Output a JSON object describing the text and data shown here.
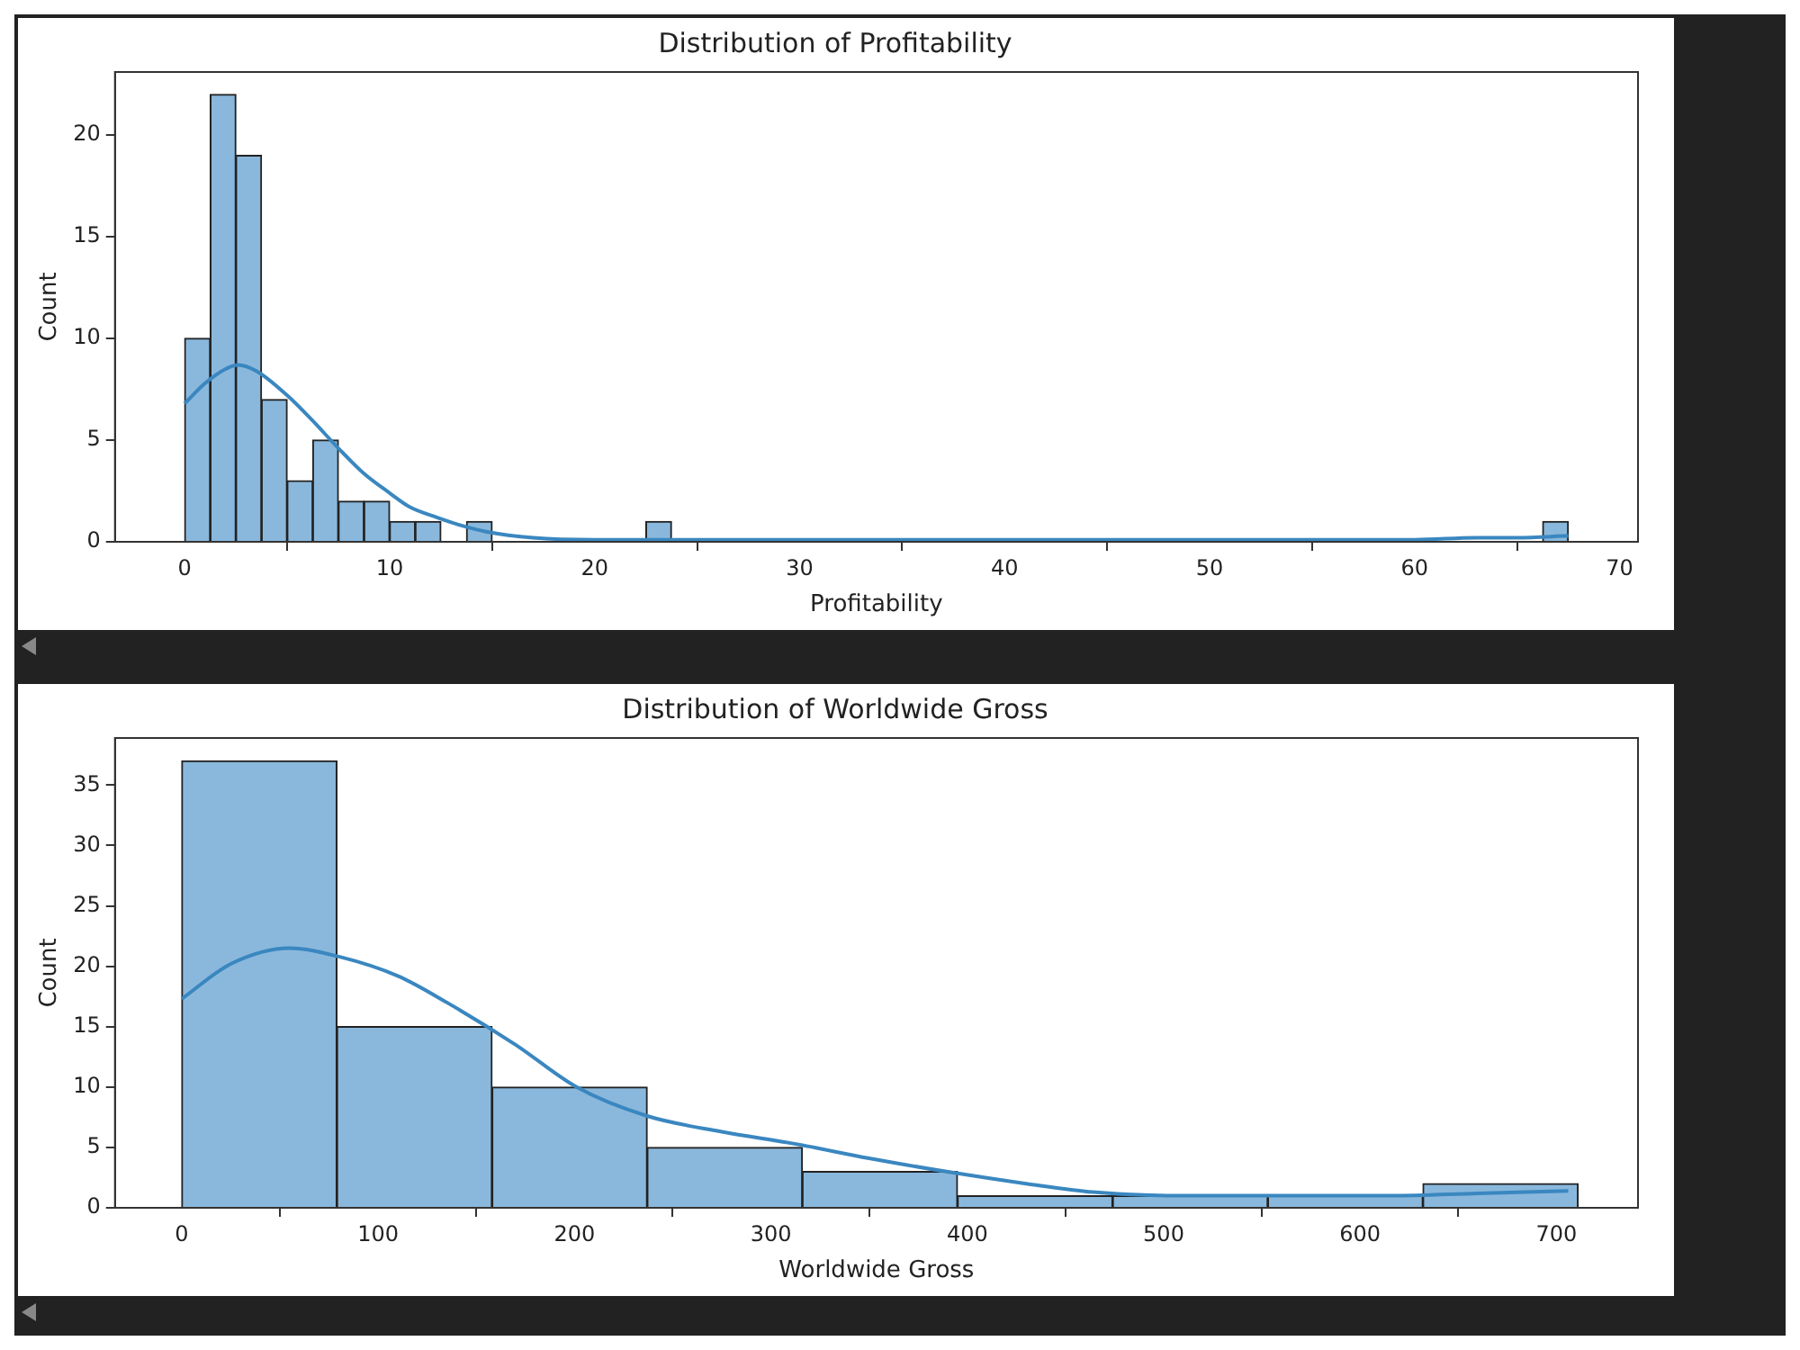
{
  "chart_data": [
    {
      "type": "histogram",
      "title": "Distribution of Profitability",
      "xlabel": "Profitability",
      "ylabel": "Count",
      "xlim": [
        -3.4,
        70.9
      ],
      "xticks": [
        0,
        10,
        20,
        30,
        40,
        50,
        60,
        70
      ],
      "ylim": [
        0,
        23.1
      ],
      "yticks": [
        0,
        5,
        10,
        15,
        20
      ],
      "legend": false,
      "grid": false,
      "series": [
        {
          "color": "#8ab8dc",
          "bins": [
            0,
            1.25,
            2.5,
            3.75,
            5,
            6.25,
            7.5,
            8.75,
            10,
            11.25,
            12.5,
            13.75,
            15,
            16.25,
            17.5,
            18.75,
            20,
            21.25,
            22.5,
            23.75,
            25,
            26.25,
            27.5,
            28.75,
            30,
            31.25,
            32.5,
            33.75,
            35,
            36.25,
            37.5,
            38.75,
            40,
            41.25,
            42.5,
            43.75,
            45,
            46.25,
            47.5,
            48.75,
            50,
            51.25,
            52.5,
            53.75,
            55,
            56.25,
            57.5,
            58.75,
            60,
            61.25,
            62.5,
            63.75,
            65,
            66.25,
            67.5
          ],
          "values": [
            10,
            22,
            19,
            7,
            3,
            5,
            2,
            2,
            1,
            1,
            0,
            1,
            0,
            0,
            0,
            0,
            0,
            0,
            1,
            0,
            0,
            0,
            0,
            0,
            0,
            0,
            0,
            0,
            0,
            0,
            0,
            0,
            0,
            0,
            0,
            0,
            0,
            0,
            0,
            0,
            0,
            0,
            0,
            0,
            0,
            0,
            0,
            0,
            0,
            0,
            0,
            0,
            0,
            1
          ]
        },
        {
          "type": "line",
          "color": "#3a87c0",
          "x": [
            0,
            1,
            2,
            2.6,
            3.5,
            5,
            6.2,
            7.5,
            8.7,
            10,
            11,
            12.3,
            13.5,
            14.7,
            17,
            20,
            25,
            30,
            40,
            50,
            55,
            60,
            63,
            65,
            67.5
          ],
          "values": [
            6.8,
            7.8,
            8.5,
            8.7,
            8.4,
            7.2,
            6,
            4.6,
            3.4,
            2.4,
            1.7,
            1.2,
            0.8,
            0.5,
            0.2,
            0.1,
            0.1,
            0.1,
            0.1,
            0.1,
            0.1,
            0.1,
            0.2,
            0.2,
            0.3
          ]
        }
      ]
    },
    {
      "type": "histogram",
      "title": "Distribution of Worldwide Gross",
      "xlabel": "Worldwide Gross",
      "ylabel": "Count",
      "xlim": [
        -34,
        741.5
      ],
      "xticks": [
        0,
        100,
        200,
        300,
        400,
        500,
        600,
        700
      ],
      "ylim": [
        0,
        38.9
      ],
      "yticks": [
        0,
        5,
        10,
        15,
        20,
        25,
        30,
        35
      ],
      "legend": false,
      "grid": false,
      "series": [
        {
          "color": "#8ab8dc",
          "bins": [
            0,
            79,
            158,
            237,
            316,
            395,
            474,
            553,
            632,
            711
          ],
          "values": [
            37,
            15,
            10,
            5,
            3,
            1,
            1,
            1,
            2
          ]
        },
        {
          "type": "line",
          "color": "#3a87c0",
          "x": [
            0,
            25,
            55,
            80,
            110,
            135,
            170,
            201,
            237,
            275,
            312,
            350,
            393,
            430,
            464,
            514,
            560,
            616,
            660,
            706
          ],
          "values": [
            17.3,
            20.2,
            21.5,
            20.8,
            19.2,
            17,
            13.5,
            10,
            7.6,
            6.3,
            5.3,
            4.1,
            2.9,
            2,
            1.3,
            1,
            1,
            1,
            1.2,
            1.4
          ]
        }
      ]
    }
  ]
}
